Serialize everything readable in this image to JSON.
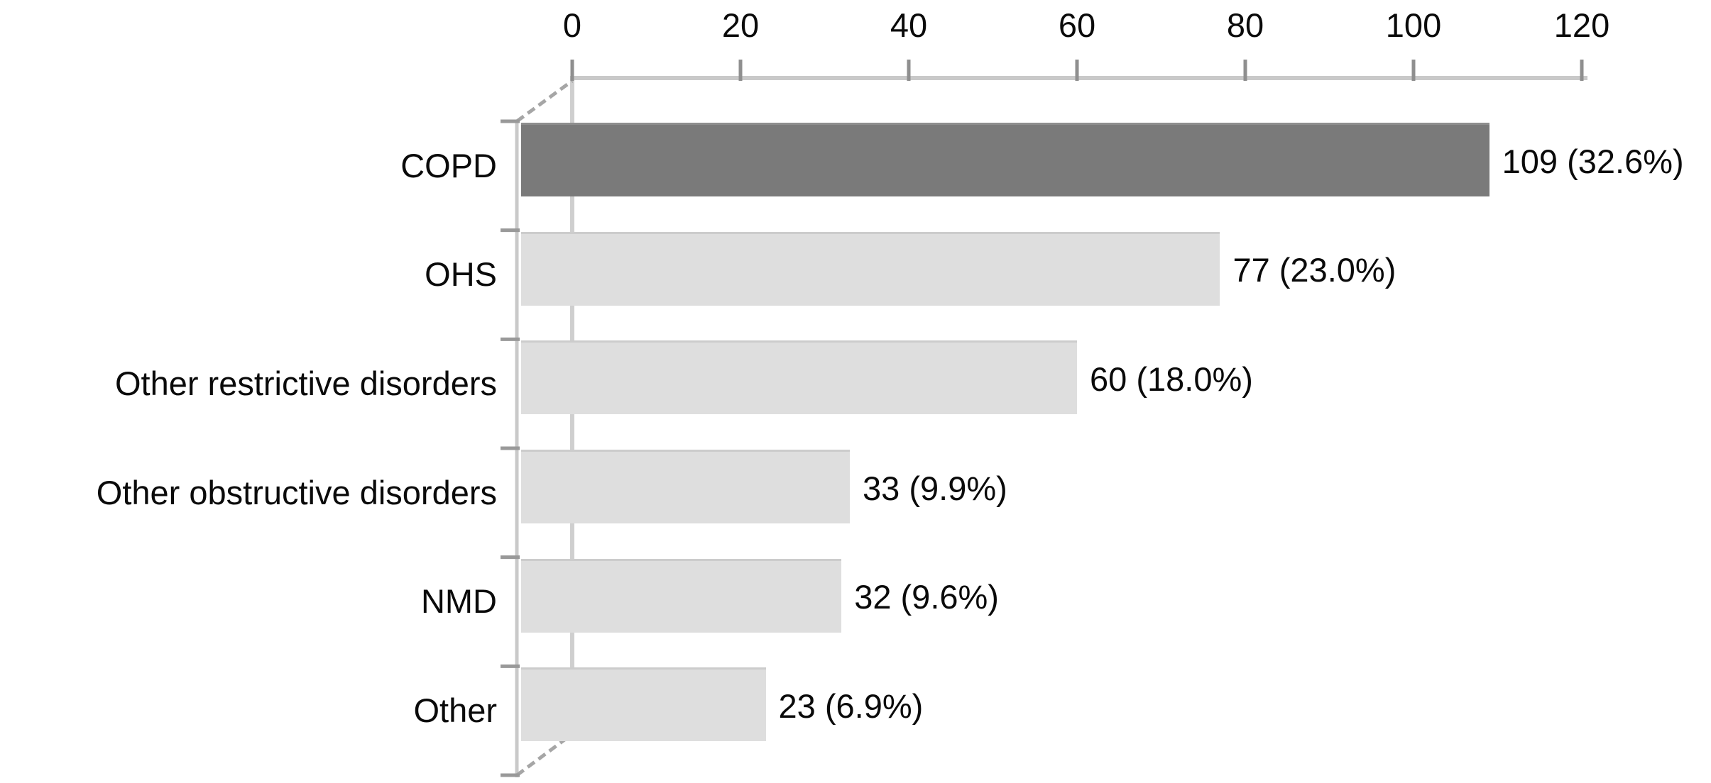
{
  "chart_data": {
    "type": "bar",
    "orientation": "horizontal",
    "title": "",
    "xlabel": "",
    "ylabel": "",
    "categories": [
      "COPD",
      "OHS",
      "Other restrictive disorders",
      "Other obstructive disorders",
      "NMD",
      "Other"
    ],
    "values": [
      109,
      77,
      60,
      33,
      32,
      23
    ],
    "bar_labels": [
      "109 (32.6%)",
      "77 (23.0%)",
      "60 (18.0%)",
      "33 (9.9%)",
      "32 (9.6%)",
      "23 (6.9%)"
    ],
    "x_ticks": [
      0,
      20,
      40,
      60,
      80,
      100,
      120
    ],
    "xlim": [
      0,
      120
    ],
    "axis_position": "top",
    "grid": false,
    "legend": false,
    "highlight_index": 0,
    "colors": {
      "highlight_bar": "#7a7a7a",
      "bar": "#dedede",
      "axis_line": "#c9c9c9",
      "tick": "#8f8f8f",
      "text": "#0a0a0a",
      "background": "#ffffff"
    }
  }
}
